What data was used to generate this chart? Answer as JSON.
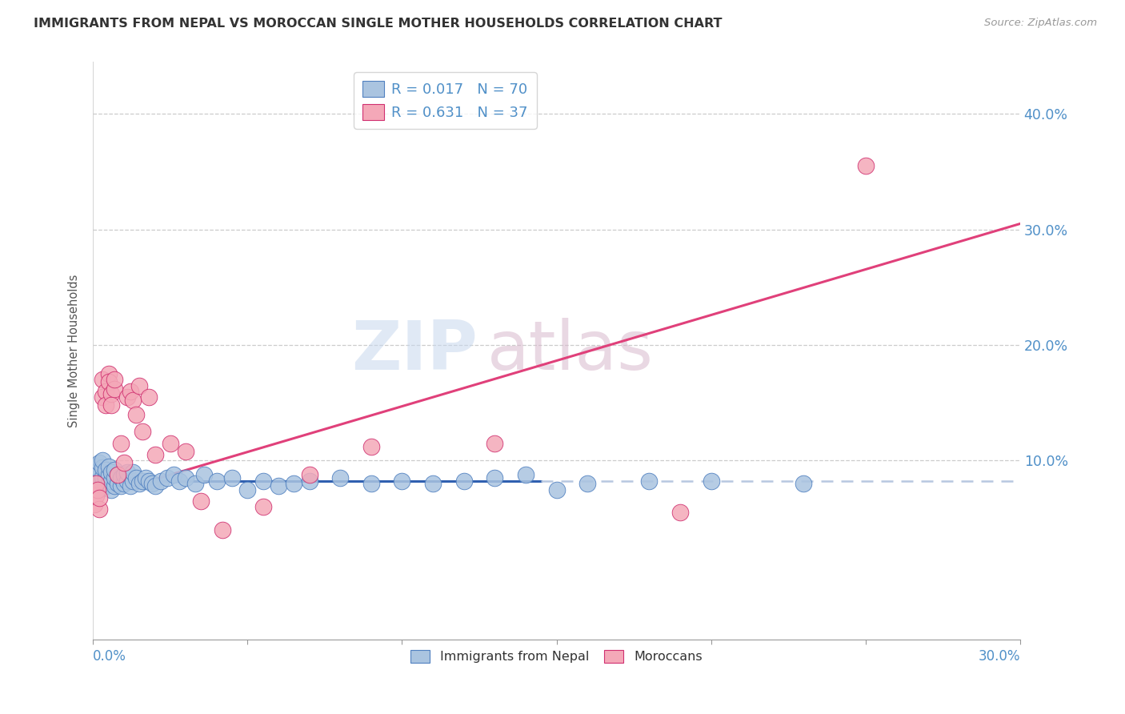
{
  "title": "IMMIGRANTS FROM NEPAL VS MOROCCAN SINGLE MOTHER HOUSEHOLDS CORRELATION CHART",
  "source": "Source: ZipAtlas.com",
  "ylabel": "Single Mother Households",
  "ytick_vals": [
    0.0,
    0.1,
    0.2,
    0.3,
    0.4
  ],
  "ytick_labels": [
    "",
    "10.0%",
    "20.0%",
    "30.0%",
    "40.0%"
  ],
  "xlim": [
    0.0,
    0.3
  ],
  "ylim": [
    -0.055,
    0.445
  ],
  "color_nepal": "#aac4e0",
  "color_morocco": "#f4a8b8",
  "color_line_nepal": "#3060b0",
  "color_line_morocco": "#e0407a",
  "color_nepal_edge": "#5080c0",
  "color_morocco_edge": "#d03070",
  "watermark_zip": "#c8d8ee",
  "watermark_atlas": "#d8b8cc",
  "nepal_line_solid_end": 0.145,
  "nepal_line_dashed_start": 0.145,
  "nepal_line_y0": 0.082,
  "nepal_line_y1": 0.082,
  "morocco_line_y0": 0.068,
  "morocco_line_y1": 0.305,
  "nepal_x": [
    0.0005,
    0.001,
    0.001,
    0.001,
    0.0015,
    0.0015,
    0.002,
    0.002,
    0.002,
    0.002,
    0.003,
    0.003,
    0.003,
    0.003,
    0.004,
    0.004,
    0.004,
    0.005,
    0.005,
    0.005,
    0.006,
    0.006,
    0.006,
    0.007,
    0.007,
    0.007,
    0.008,
    0.008,
    0.009,
    0.009,
    0.01,
    0.01,
    0.011,
    0.011,
    0.012,
    0.013,
    0.013,
    0.014,
    0.015,
    0.016,
    0.017,
    0.018,
    0.019,
    0.02,
    0.022,
    0.024,
    0.026,
    0.028,
    0.03,
    0.033,
    0.036,
    0.04,
    0.045,
    0.05,
    0.055,
    0.06,
    0.065,
    0.07,
    0.08,
    0.09,
    0.1,
    0.11,
    0.12,
    0.13,
    0.14,
    0.15,
    0.16,
    0.18,
    0.2,
    0.23
  ],
  "nepal_y": [
    0.082,
    0.078,
    0.09,
    0.095,
    0.085,
    0.088,
    0.075,
    0.082,
    0.092,
    0.098,
    0.08,
    0.086,
    0.094,
    0.1,
    0.078,
    0.085,
    0.092,
    0.08,
    0.088,
    0.095,
    0.075,
    0.082,
    0.09,
    0.078,
    0.085,
    0.092,
    0.08,
    0.088,
    0.078,
    0.085,
    0.08,
    0.088,
    0.082,
    0.09,
    0.078,
    0.082,
    0.09,
    0.085,
    0.08,
    0.082,
    0.085,
    0.082,
    0.08,
    0.078,
    0.082,
    0.085,
    0.088,
    0.082,
    0.085,
    0.08,
    0.088,
    0.082,
    0.085,
    0.075,
    0.082,
    0.078,
    0.08,
    0.082,
    0.085,
    0.08,
    0.082,
    0.08,
    0.082,
    0.085,
    0.088,
    0.075,
    0.08,
    0.082,
    0.082,
    0.08
  ],
  "morocco_x": [
    0.0005,
    0.001,
    0.001,
    0.0015,
    0.002,
    0.002,
    0.003,
    0.003,
    0.004,
    0.004,
    0.005,
    0.005,
    0.006,
    0.006,
    0.007,
    0.007,
    0.008,
    0.009,
    0.01,
    0.011,
    0.012,
    0.013,
    0.014,
    0.015,
    0.016,
    0.018,
    0.02,
    0.025,
    0.03,
    0.035,
    0.042,
    0.055,
    0.07,
    0.09,
    0.13,
    0.19,
    0.25
  ],
  "morocco_y": [
    0.062,
    0.07,
    0.08,
    0.075,
    0.058,
    0.068,
    0.155,
    0.17,
    0.16,
    0.148,
    0.175,
    0.168,
    0.158,
    0.148,
    0.162,
    0.17,
    0.088,
    0.115,
    0.098,
    0.155,
    0.16,
    0.152,
    0.14,
    0.165,
    0.125,
    0.155,
    0.105,
    0.115,
    0.108,
    0.065,
    0.04,
    0.06,
    0.088,
    0.112,
    0.115,
    0.055,
    0.355
  ]
}
